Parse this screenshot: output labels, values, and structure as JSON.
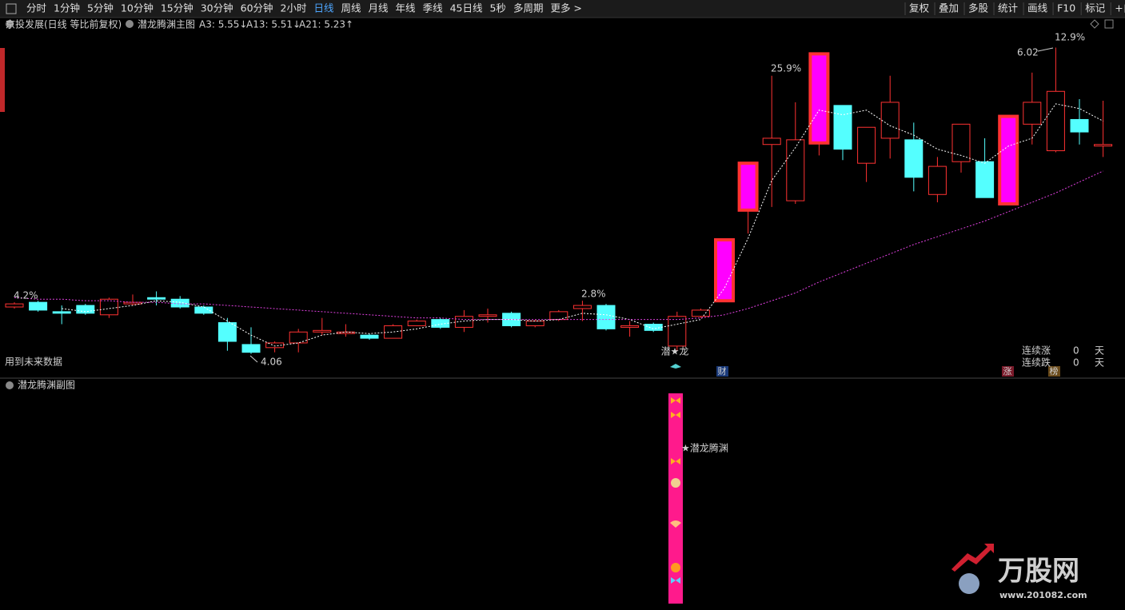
{
  "toolbar": {
    "left": [
      "分时",
      "1分钟",
      "5分钟",
      "10分钟",
      "15分钟",
      "30分钟",
      "60分钟",
      "2小时",
      "日线",
      "周线",
      "月线",
      "年线",
      "季线",
      "45日线",
      "5秒",
      "多周期",
      "更多 >"
    ],
    "right": [
      "复权",
      "叠加",
      "多股",
      "统计",
      "画线",
      "F10",
      "标记",
      "+自选"
    ]
  },
  "header": {
    "stock": "京投发展(日线 等比前复权)",
    "indicator": "潜龙腾渊主图",
    "ma_labels": [
      "A3: 5.55↓",
      "A13: 5.51↓",
      "A21: 5.23↑"
    ]
  },
  "chart_data": {
    "type": "candlestick",
    "ylim": [
      3.92,
      6.12
    ],
    "up_color": "#ff3232",
    "down_color": "#54ffff",
    "limit_color": "#ff00ff",
    "open": [
      4.36,
      4.39,
      4.33,
      4.37,
      4.31,
      4.38,
      4.42,
      4.41,
      4.36,
      4.26,
      4.12,
      4.1,
      4.13,
      4.2,
      4.19,
      4.18,
      4.16,
      4.24,
      4.28,
      4.23,
      4.3,
      4.32,
      4.24,
      4.28,
      4.35,
      4.37,
      4.23,
      4.25,
      4.11,
      4.3,
      4.4,
      4.98,
      5.4,
      5.04,
      5.41,
      5.65,
      5.28,
      5.44,
      5.43,
      5.08,
      5.29,
      5.29,
      5.02,
      5.53,
      5.36,
      5.56,
      5.39
    ],
    "high": [
      4.39,
      4.4,
      4.37,
      4.38,
      4.42,
      4.44,
      4.46,
      4.43,
      4.37,
      4.29,
      4.23,
      4.14,
      4.22,
      4.29,
      4.25,
      4.19,
      4.25,
      4.28,
      4.29,
      4.34,
      4.35,
      4.33,
      4.28,
      4.34,
      4.4,
      4.38,
      4.27,
      4.26,
      4.33,
      4.35,
      4.79,
      5.28,
      5.84,
      5.67,
      5.98,
      5.65,
      5.51,
      5.84,
      5.54,
      5.32,
      5.53,
      5.44,
      5.58,
      5.86,
      6.02,
      5.69,
      5.68
    ],
    "low": [
      4.35,
      4.33,
      4.25,
      4.31,
      4.29,
      4.37,
      4.37,
      4.35,
      4.31,
      4.08,
      4.06,
      4.07,
      4.07,
      4.18,
      4.17,
      4.15,
      4.16,
      4.24,
      4.22,
      4.2,
      4.26,
      4.23,
      4.23,
      4.27,
      4.27,
      4.21,
      4.17,
      4.2,
      4.08,
      4.29,
      4.4,
      4.83,
      5.0,
      5.02,
      5.33,
      5.3,
      5.16,
      5.31,
      5.1,
      5.03,
      5.22,
      5.06,
      5.01,
      5.4,
      5.35,
      5.4,
      5.32
    ],
    "close": [
      4.38,
      4.34,
      4.32,
      4.32,
      4.41,
      4.39,
      4.41,
      4.36,
      4.32,
      4.14,
      4.07,
      4.13,
      4.2,
      4.21,
      4.2,
      4.16,
      4.24,
      4.27,
      4.23,
      4.3,
      4.31,
      4.24,
      4.27,
      4.33,
      4.37,
      4.22,
      4.24,
      4.21,
      4.3,
      4.34,
      4.79,
      5.28,
      5.44,
      5.43,
      5.98,
      5.37,
      5.51,
      5.67,
      5.19,
      5.26,
      5.53,
      5.06,
      5.58,
      5.67,
      5.74,
      5.48,
      5.4
    ],
    "series": [
      {
        "color": "#ffffff",
        "values": [
          null,
          null,
          4.35,
          4.33,
          4.35,
          4.37,
          4.4,
          4.39,
          4.36,
          4.27,
          4.18,
          4.11,
          4.13,
          4.18,
          4.2,
          4.19,
          4.2,
          4.22,
          4.25,
          4.27,
          4.28,
          4.28,
          4.27,
          4.28,
          4.32,
          4.31,
          4.28,
          4.22,
          4.25,
          4.28,
          4.48,
          4.8,
          5.17,
          5.38,
          5.62,
          5.59,
          5.62,
          5.52,
          5.46,
          5.37,
          5.33,
          5.28,
          5.39,
          5.44,
          5.66,
          5.63,
          5.55
        ]
      },
      {
        "color": "#e040e0",
        "values": [
          4.42,
          4.41,
          4.41,
          4.4,
          4.4,
          4.39,
          4.39,
          4.38,
          4.38,
          4.37,
          4.36,
          4.35,
          4.34,
          4.33,
          4.32,
          4.31,
          4.3,
          4.29,
          4.29,
          4.28,
          4.28,
          4.28,
          4.28,
          4.28,
          4.28,
          4.28,
          4.28,
          4.28,
          4.28,
          4.29,
          4.31,
          4.35,
          4.4,
          4.45,
          4.52,
          4.58,
          4.64,
          4.7,
          4.76,
          4.81,
          4.86,
          4.91,
          4.97,
          5.03,
          5.09,
          5.16,
          5.23
        ]
      }
    ],
    "annotations": {
      "left_pct": "4.2%",
      "mid_pct": "2.8%",
      "surge_pct": "25.9%",
      "right_pct": "12.9%",
      "high_label": "6.02",
      "low_label": "4.06",
      "signal": "潜★龙",
      "future_note": "用到未来数据",
      "cai": "财",
      "zhang": "涨",
      "bang": "榜"
    },
    "stats": {
      "rise_label": "连续涨",
      "rise_count": "0",
      "fall_label": "连续跌",
      "fall_count": "0",
      "unit": "天"
    }
  },
  "subchart": {
    "title": "潜龙腾渊副图",
    "signal": "★潜龙腾渊"
  },
  "watermark": {
    "brand": "万股网",
    "url": "www.201082.com"
  }
}
